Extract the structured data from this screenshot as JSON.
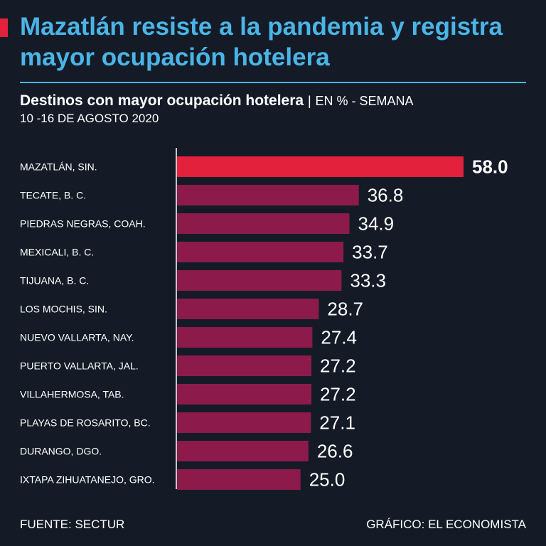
{
  "header": {
    "title": "Mazatlán resiste a la pandemia y registra mayor ocupación hotelera",
    "subtitle_main": "Destinos con mayor ocupación hotelera",
    "subtitle_separator": "|",
    "subtitle_unit": "EN % - SEMANA",
    "date_range": "10 -16 DE AGOSTO 2020"
  },
  "footer": {
    "source": "FUENTE: SECTUR",
    "credit": "GRÁFICO: EL ECONOMISTA"
  },
  "colors": {
    "background": "#141b27",
    "title": "#4bb4e6",
    "highlight_bar": "#e3213c",
    "bar": "#8c1a4b"
  },
  "chart_data": {
    "type": "bar",
    "orientation": "horizontal",
    "title": "Destinos con mayor ocupación hotelera",
    "xlabel": "EN %",
    "ylabel": "",
    "xlim": [
      0,
      58
    ],
    "grid": false,
    "categories": [
      "MAZATLÁN, SIN.",
      "TECATE, B. C.",
      "PIEDRAS NEGRAS, COAH.",
      "MEXICALI, B. C.",
      "TIJUANA, B. C.",
      "LOS MOCHIS, SIN.",
      "NUEVO VALLARTA, NAY.",
      "PUERTO VALLARTA, JAL.",
      "VILLAHERMOSA, TAB.",
      "PLAYAS DE ROSARITO, BC.",
      "DURANGO, DGO.",
      "IXTAPA ZIHUATANEJO, GRO."
    ],
    "values": [
      58.0,
      36.8,
      34.9,
      33.7,
      33.3,
      28.7,
      27.4,
      27.2,
      27.2,
      27.1,
      26.6,
      25.0
    ],
    "labels": [
      "58.0",
      "36.8",
      "34.9",
      "33.7",
      "33.3",
      "28.7",
      "27.4",
      "27.2",
      "27.2",
      "27.1",
      "26.6",
      "25.0"
    ],
    "highlight_index": 0
  }
}
